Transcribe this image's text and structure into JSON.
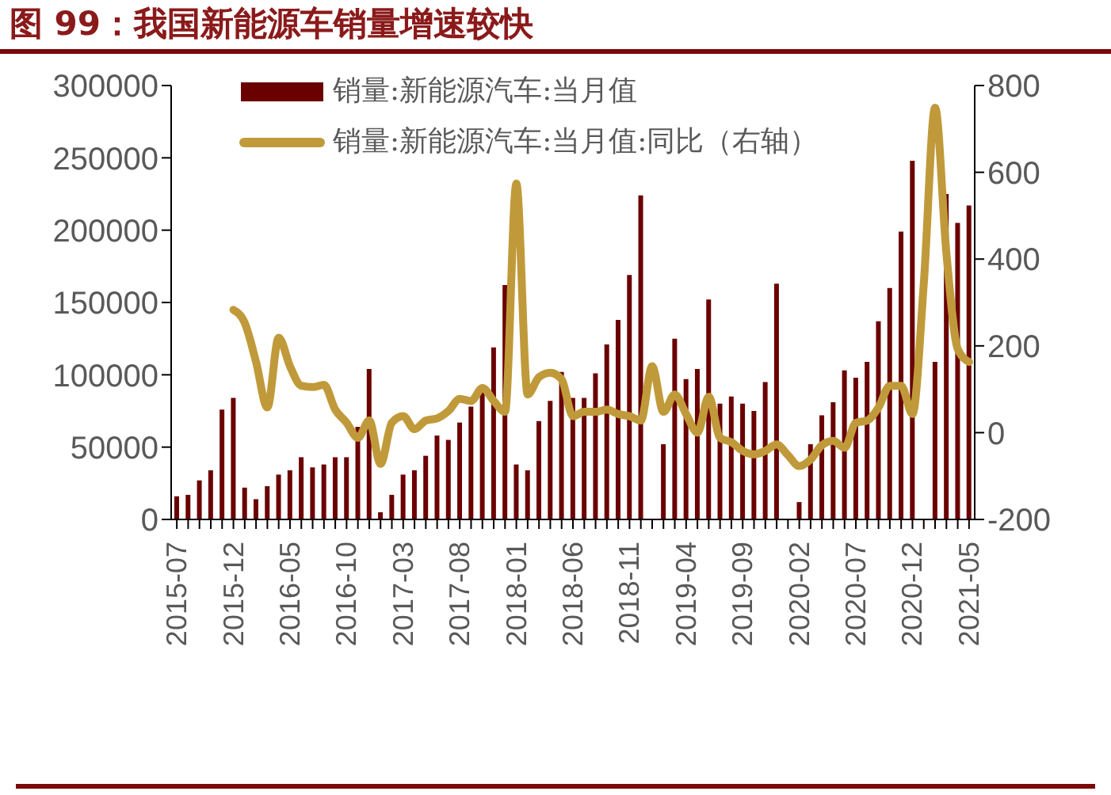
{
  "chart_data": {
    "type": "bar",
    "title": "图 99：我国新能源车销量增速较快",
    "categories": [
      "2015-07",
      null,
      null,
      null,
      null,
      "2015-12",
      null,
      null,
      null,
      null,
      "2016-05",
      null,
      null,
      null,
      null,
      "2016-10",
      null,
      null,
      null,
      null,
      "2017-03",
      null,
      null,
      null,
      null,
      "2017-08",
      null,
      null,
      null,
      null,
      "2018-01",
      null,
      null,
      null,
      null,
      "2018-06",
      null,
      null,
      null,
      null,
      "2018-11",
      null,
      null,
      null,
      null,
      "2019-04",
      null,
      null,
      null,
      null,
      "2019-09",
      null,
      null,
      null,
      null,
      "2020-02",
      null,
      null,
      null,
      null,
      "2020-07",
      null,
      null,
      null,
      null,
      "2020-12",
      null,
      null,
      null,
      null,
      "2021-05"
    ],
    "series": [
      {
        "name": "销量:新能源汽车:当月值",
        "color": "#6b0000",
        "values": [
          16000,
          17000,
          27000,
          34000,
          76000,
          84000,
          22000,
          14000,
          23000,
          31000,
          34000,
          43000,
          36000,
          38000,
          43000,
          43000,
          64000,
          104000,
          5000,
          17000,
          31000,
          34000,
          44000,
          58000,
          55000,
          67000,
          78000,
          88000,
          119000,
          162000,
          38000,
          34000,
          68000,
          82000,
          102000,
          84000,
          84000,
          101000,
          121000,
          138000,
          169000,
          224000,
          null,
          52000,
          125000,
          97000,
          104000,
          152000,
          80000,
          85000,
          80000,
          75000,
          95000,
          163000,
          null,
          12000,
          52000,
          72000,
          81000,
          103000,
          98000,
          109000,
          137000,
          160000,
          199000,
          248000,
          null,
          109000,
          225000,
          205000,
          217000
        ]
      },
      {
        "name": "销量:新能源汽车:当月值:同比（右轴）",
        "type": "line",
        "axis": "y2",
        "color": "#c09a3a",
        "values": [
          null,
          null,
          null,
          null,
          null,
          283,
          253,
          163,
          58,
          219,
          153,
          108,
          105,
          110,
          53,
          23,
          -12,
          28,
          -72,
          23,
          38,
          8,
          28,
          33,
          50,
          78,
          73,
          103,
          73,
          48,
          574,
          88,
          128,
          138,
          123,
          38,
          48,
          48,
          53,
          43,
          38,
          28,
          153,
          48,
          88,
          43,
          0,
          83,
          -12,
          -22,
          -42,
          -50,
          -42,
          -27,
          -52,
          -77,
          -62,
          -29,
          -19,
          -35,
          23,
          28,
          58,
          108,
          108,
          43,
          343,
          749,
          413,
          193,
          163
        ]
      }
    ],
    "ylim": [
      0,
      300000
    ],
    "yticks": [
      0,
      50000,
      100000,
      150000,
      200000,
      250000,
      300000
    ],
    "y2lim": [
      -200,
      800
    ],
    "y2ticks": [
      -200,
      0,
      200,
      400,
      600,
      800
    ],
    "legend": "top left",
    "marker": "none"
  }
}
